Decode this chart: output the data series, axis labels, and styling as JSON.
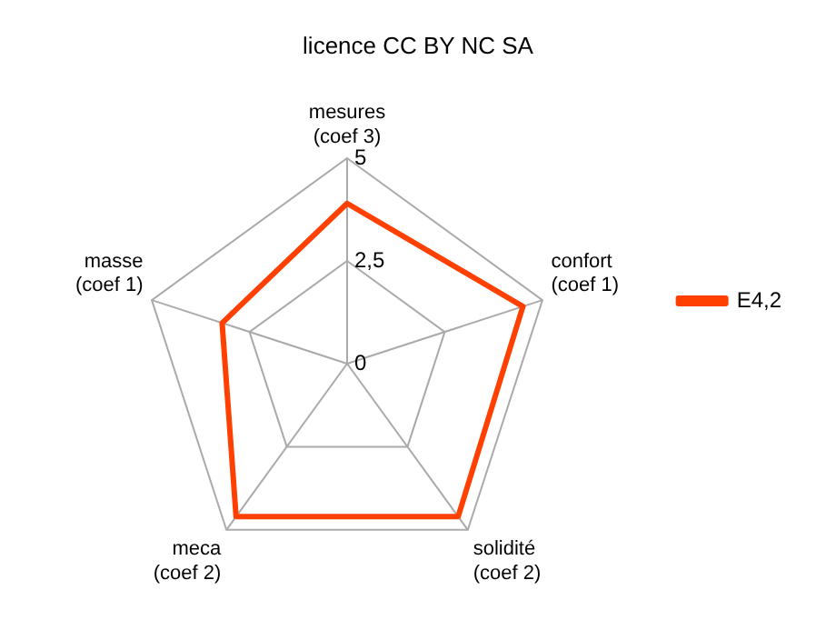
{
  "chart_data": {
    "type": "radar",
    "title": "licence CC BY NC SA",
    "categories": [
      "mesures\n(coef 3)",
      "confort\n(coef 1)",
      "solidité\n(coef 2)",
      "meca\n(coef 2)",
      "masse\n(coef 1)"
    ],
    "series": [
      {
        "name": "E4,2",
        "color": "#ff4000",
        "values": [
          3.9,
          4.5,
          4.6,
          4.6,
          3.2
        ]
      }
    ],
    "ylim": [
      0,
      5
    ],
    "yticks": [
      0,
      {
        "value": 2.5,
        "label": "2,5"
      },
      5
    ],
    "grid": true,
    "legend": "right",
    "marker": "none"
  }
}
